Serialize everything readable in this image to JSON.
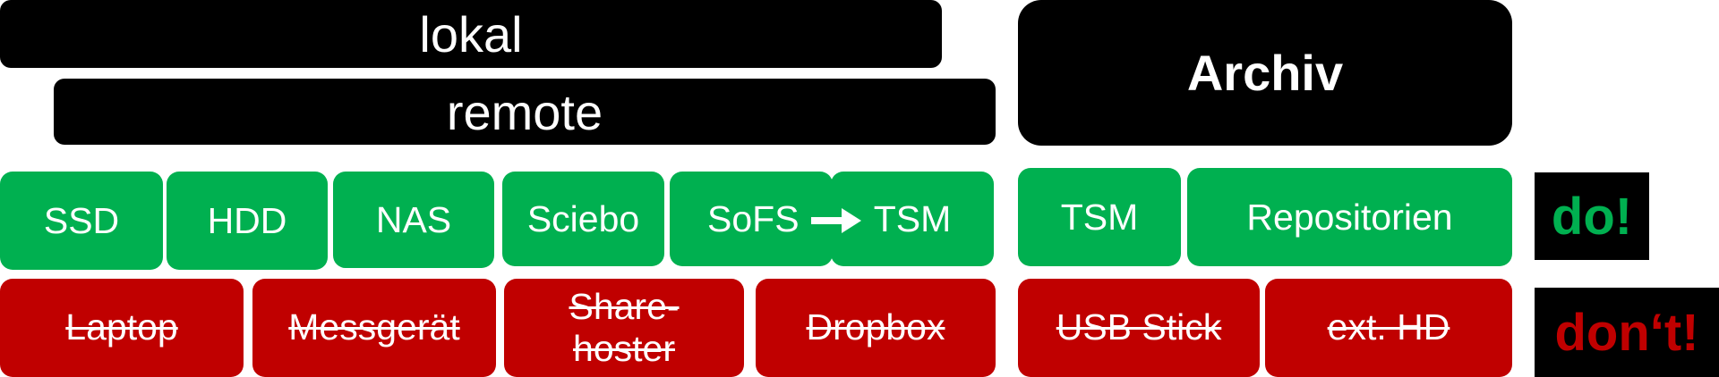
{
  "colors": {
    "header": "#000000",
    "do": "#00b050",
    "dont": "#c00000",
    "text": "#ffffff"
  },
  "headers": {
    "lokal": "lokal",
    "remote": "remote",
    "archiv": "Archiv"
  },
  "do_items": [
    "SSD",
    "HDD",
    "NAS",
    "Sciebo",
    "SoFS",
    "TSM",
    "TSM",
    "Repositorien"
  ],
  "dont_items": [
    "Laptop",
    "Messgerät",
    "Share-",
    "hoster",
    "Dropbox",
    "USB Stick",
    "ext. HD"
  ],
  "tags": {
    "do": "do!",
    "dont": "don‘t!"
  },
  "arrow": "right-arrow-icon"
}
